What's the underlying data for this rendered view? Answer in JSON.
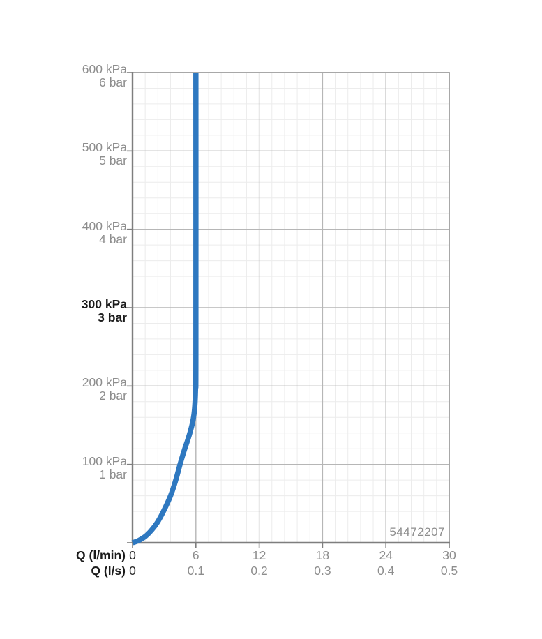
{
  "chart_data": {
    "type": "line",
    "title": "",
    "description": "Pressure vs. flow-rate performance curve with flow limiter at 6 l/min",
    "x_axis": {
      "primary": {
        "label": "Q (l/min)",
        "ticks": [
          "0",
          "6",
          "12",
          "18",
          "24",
          "30"
        ],
        "range": [
          0,
          30
        ]
      },
      "secondary": {
        "label": "Q (l/s)",
        "ticks": [
          "0",
          "0.1",
          "0.2",
          "0.3",
          "0.4",
          "0.5"
        ],
        "range": [
          0,
          0.5
        ]
      }
    },
    "y_axis": {
      "range_kpa": [
        0,
        600
      ],
      "major_step_kpa": 100,
      "minor_per_major": 5,
      "ticks": [
        {
          "kpa": "600 kPa",
          "bar": "6 bar",
          "value": 600,
          "bold": false
        },
        {
          "kpa": "500 kPa",
          "bar": "5 bar",
          "value": 500,
          "bold": false
        },
        {
          "kpa": "400 kPa",
          "bar": "4 bar",
          "value": 400,
          "bold": false
        },
        {
          "kpa": "300 kPa",
          "bar": "3 bar",
          "value": 300,
          "bold": true
        },
        {
          "kpa": "200 kPa",
          "bar": "2 bar",
          "value": 200,
          "bold": false
        },
        {
          "kpa": "100 kPa",
          "bar": "1 bar",
          "value": 100,
          "bold": false
        }
      ]
    },
    "series": [
      {
        "name": "pressure-flow-curve",
        "color": "#2e78c0",
        "points_q_lmin_kpa": [
          [
            0,
            0
          ],
          [
            0.6,
            3
          ],
          [
            1.2,
            8
          ],
          [
            1.8,
            16
          ],
          [
            2.4,
            27
          ],
          [
            3,
            42
          ],
          [
            3.6,
            60
          ],
          [
            4.1,
            80
          ],
          [
            4.5,
            100
          ],
          [
            4.9,
            118
          ],
          [
            5.2,
            130
          ],
          [
            5.45,
            141
          ],
          [
            5.68,
            153
          ],
          [
            5.85,
            167
          ],
          [
            5.94,
            185
          ],
          [
            5.98,
            205
          ],
          [
            6,
            235
          ],
          [
            6,
            600
          ]
        ]
      }
    ],
    "grid": {
      "minor_color": "#ececec",
      "major_color": "#b6b6b6",
      "border_color": "#9e9e9e",
      "axis_color": "#7e7e7e"
    },
    "annotations": {
      "product_number": "54472207"
    },
    "colors": {
      "text_gray": "#8d8d8d",
      "text_black": "#1b1b1b",
      "background": "#ffffff"
    }
  }
}
